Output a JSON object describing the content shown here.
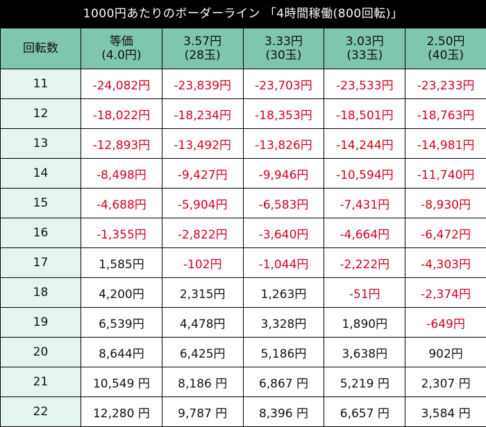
{
  "title": "1000円あたりのボーダーライン 「4時間稼働(800回転)」",
  "header": {
    "first": "回転数",
    "columns": [
      {
        "line1": "等価",
        "line2": "(4.0円)"
      },
      {
        "line1": "3.57円",
        "line2": "(28玉)"
      },
      {
        "line1": "3.33円",
        "line2": "(30玉)"
      },
      {
        "line1": "3.03円",
        "line2": "(33玉)"
      },
      {
        "line1": "2.50円",
        "line2": "(40玉)"
      }
    ]
  },
  "rows": [
    {
      "spins": "11",
      "values": [
        "-24,082円",
        "-23,839円",
        "-23,703円",
        "-23,533円",
        "-23,233円"
      ]
    },
    {
      "spins": "12",
      "values": [
        "-18,022円",
        "-18,234円",
        "-18,353円",
        "-18,501円",
        "-18,763円"
      ]
    },
    {
      "spins": "13",
      "values": [
        "-12,893円",
        "-13,492円",
        "-13,826円",
        "-14,244円",
        "-14,981円"
      ]
    },
    {
      "spins": "14",
      "values": [
        "-8,498円",
        "-9,427円",
        "-9,946円",
        "-10,594円",
        "-11,740円"
      ]
    },
    {
      "spins": "15",
      "values": [
        "-4,688円",
        "-5,904円",
        "-6,583円",
        "-7,431円",
        "-8,930円"
      ]
    },
    {
      "spins": "16",
      "values": [
        "-1,355円",
        "-2,822円",
        "-3,640円",
        "-4,664円",
        "-6,472円"
      ]
    },
    {
      "spins": "17",
      "values": [
        "1,585円",
        "-102円",
        "-1,044円",
        "-2,222円",
        "-4,303円"
      ]
    },
    {
      "spins": "18",
      "values": [
        "4,200円",
        "2,315円",
        "1,263円",
        "-51円",
        "-2,374円"
      ]
    },
    {
      "spins": "19",
      "values": [
        "6,539円",
        "4,478円",
        "3,328円",
        "1,890円",
        "-649円"
      ]
    },
    {
      "spins": "20",
      "values": [
        "8,644円",
        "6,425円",
        "5,186円",
        "3,638円",
        "902円"
      ]
    },
    {
      "spins": "21",
      "values": [
        "10,549 円",
        "8,186 円",
        "6,867 円",
        "5,219 円",
        "2,307 円"
      ]
    },
    {
      "spins": "22",
      "values": [
        "12,280 円",
        "9,787 円",
        "8,396 円",
        "6,657 円",
        "3,584 円"
      ]
    }
  ],
  "colors": {
    "negative": "#d4001f",
    "header_bg": "#7ec6ac",
    "rowhead_bg": "#e6f4f1",
    "title_bg": "#000000"
  }
}
